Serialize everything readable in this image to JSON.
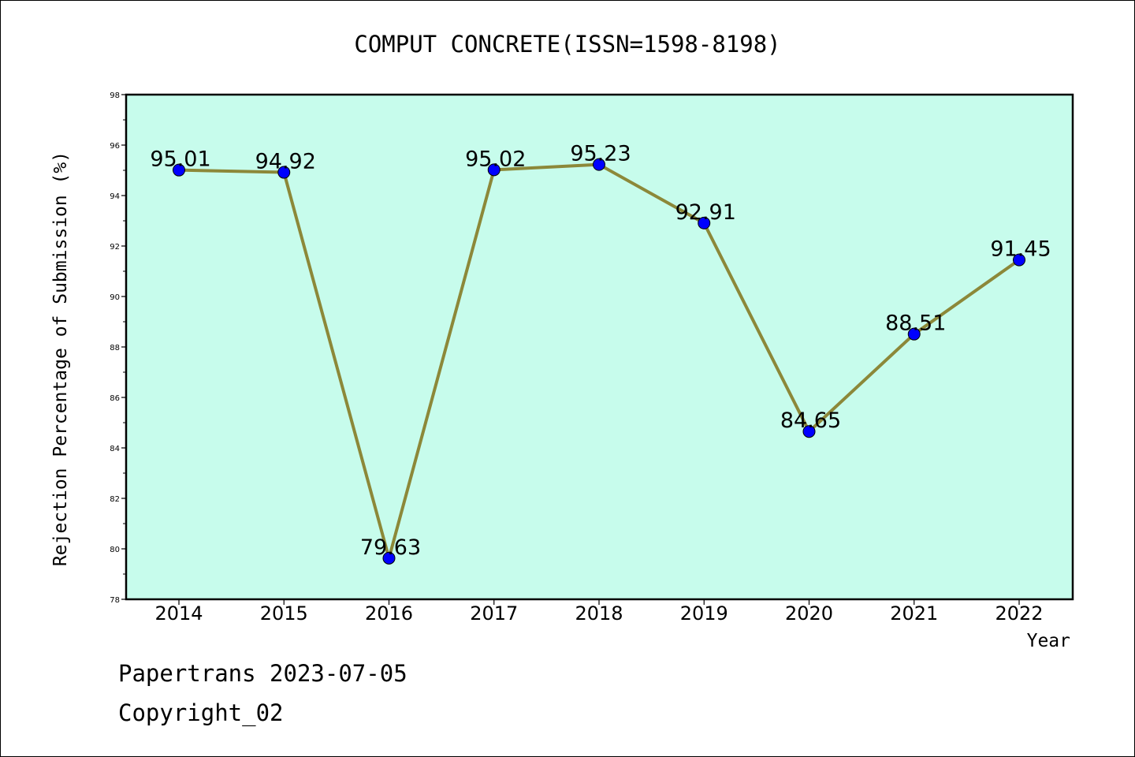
{
  "chart_data": {
    "type": "line",
    "title": "COMPUT CONCRETE(ISSN=1598-8198)",
    "xlabel": "Year",
    "ylabel": "Rejection Percentage of Submission (%)",
    "categories": [
      "2014",
      "2015",
      "2016",
      "2017",
      "2018",
      "2019",
      "2020",
      "2021",
      "2022"
    ],
    "values": [
      95.01,
      94.92,
      79.63,
      95.02,
      95.23,
      92.91,
      84.65,
      88.51,
      91.45
    ],
    "data_labels": [
      "95.01",
      "94.92",
      "79.63",
      "95.02",
      "95.23",
      "92.91",
      "84.65",
      "88.51",
      "91.45"
    ],
    "ylim": [
      78,
      98
    ],
    "yticks": [
      "78",
      "80",
      "82",
      "84",
      "86",
      "88",
      "90",
      "92",
      "94",
      "96",
      "98"
    ],
    "grid": false,
    "colors": {
      "plot_background": "#c7fcec",
      "line": "#8c8839",
      "marker": "#0000ff"
    }
  },
  "footer": {
    "line1": "Papertrans 2023-07-05",
    "line2": "Copyright_02"
  }
}
